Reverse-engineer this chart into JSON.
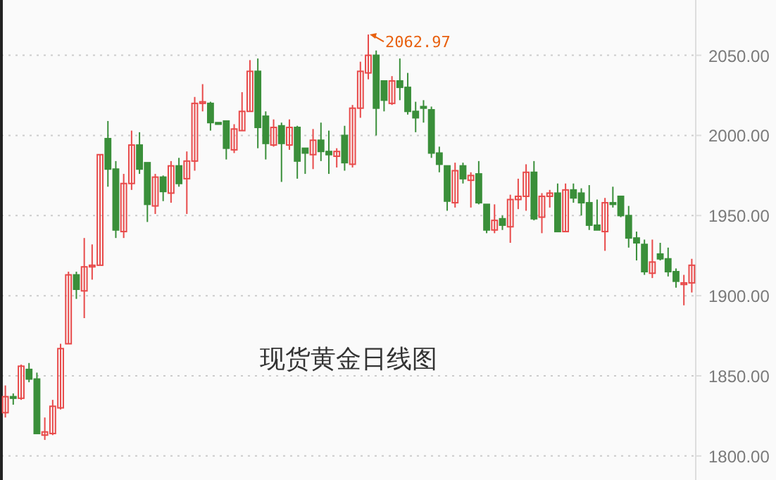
{
  "chart_data": {
    "type": "candlestick",
    "title": "现货黄金日线图",
    "categories": [
      null,
      null,
      null,
      null,
      null,
      null,
      null,
      null,
      null,
      null,
      null,
      null,
      null,
      null,
      null,
      null,
      null,
      null,
      null,
      null,
      null,
      null,
      null,
      null,
      null,
      null,
      null,
      null,
      null,
      null,
      null,
      null,
      null,
      null,
      null,
      null,
      null,
      null,
      null,
      null,
      null,
      null,
      null,
      null,
      null,
      null,
      null,
      null,
      null,
      null,
      null,
      null,
      null,
      null,
      null,
      null,
      null,
      null,
      null,
      null,
      null,
      null,
      null,
      null,
      null,
      null,
      null,
      null,
      null,
      null,
      null,
      null,
      null,
      null,
      null,
      null,
      null,
      null,
      null,
      null,
      null,
      null,
      null,
      null,
      null,
      null,
      null,
      null
    ],
    "ohlc": [
      [
        1827,
        1844,
        1824,
        1837
      ],
      [
        1837,
        1839,
        1832,
        1836
      ],
      [
        1836,
        1857,
        1835,
        1856
      ],
      [
        1854,
        1858,
        1846,
        1848
      ],
      [
        1848,
        1852,
        1814,
        1814
      ],
      [
        1813,
        1824,
        1810,
        1815
      ],
      [
        1814,
        1835,
        1813,
        1831
      ],
      [
        1830,
        1870,
        1829,
        1867
      ],
      [
        1870,
        1915,
        1870,
        1913
      ],
      [
        1913,
        1915,
        1898,
        1904
      ],
      [
        1903,
        1936,
        1886,
        1918
      ],
      [
        1918,
        1932,
        1910,
        1919
      ],
      [
        1919,
        1988,
        1919,
        1988
      ],
      [
        1998,
        2009,
        1968,
        1979
      ],
      [
        1979,
        1984,
        1936,
        1941
      ],
      [
        1940,
        1976,
        1936,
        1970
      ],
      [
        1970,
        2003,
        1966,
        1994
      ],
      [
        1994,
        2002,
        1976,
        1979
      ],
      [
        1983,
        1983,
        1946,
        1957
      ],
      [
        1956,
        1976,
        1951,
        1974
      ],
      [
        1974,
        1975,
        1959,
        1965
      ],
      [
        1964,
        1984,
        1958,
        1981
      ],
      [
        1981,
        1986,
        1968,
        1970
      ],
      [
        1973,
        1990,
        1951,
        1984
      ],
      [
        1984,
        2024,
        1978,
        2020
      ],
      [
        2020,
        2032,
        2015,
        2021
      ],
      [
        2020,
        2021,
        2003,
        2008
      ],
      [
        2008,
        2008,
        2007,
        2007
      ],
      [
        2009,
        2009,
        1985,
        1992
      ],
      [
        1991,
        2007,
        1989,
        2004
      ],
      [
        2003,
        2027,
        2003,
        2015
      ],
      [
        2015,
        2047,
        2015,
        2040
      ],
      [
        2040,
        2048,
        1992,
        2005
      ],
      [
        2012,
        2015,
        1985,
        1995
      ],
      [
        1994,
        2010,
        1993,
        2005
      ],
      [
        2006,
        2008,
        1971,
        1995
      ],
      [
        1994,
        2010,
        1991,
        2005
      ],
      [
        2005,
        2006,
        1973,
        1984
      ],
      [
        1992,
        1992,
        1976,
        1989
      ],
      [
        1988,
        2004,
        1979,
        1997
      ],
      [
        1997,
        2008,
        1984,
        1990
      ],
      [
        1990,
        2003,
        1976,
        1988
      ],
      [
        1987,
        1992,
        1980,
        1990
      ],
      [
        2000,
        2006,
        1978,
        1983
      ],
      [
        1982,
        2019,
        1980,
        2017
      ],
      [
        2017,
        2046,
        2011,
        2040
      ],
      [
        2039,
        2062.97,
        2035,
        2050
      ],
      [
        2050,
        2053,
        2000,
        2017
      ],
      [
        2034,
        2034,
        2015,
        2022
      ],
      [
        2020,
        2037,
        2019,
        2034
      ],
      [
        2034,
        2048,
        2022,
        2030
      ],
      [
        2030,
        2039,
        2013,
        2015
      ],
      [
        2015,
        2021,
        2002,
        2011
      ],
      [
        2018,
        2022,
        2008,
        2017
      ],
      [
        2016,
        2018,
        1986,
        1989
      ],
      [
        1989,
        1993,
        1977,
        1982
      ],
      [
        1981,
        1981,
        1953,
        1959
      ],
      [
        1958,
        1983,
        1955,
        1978
      ],
      [
        1981,
        1983,
        1970,
        1973
      ],
      [
        1972,
        1977,
        1955,
        1975
      ],
      [
        1976,
        1984,
        1957,
        1958
      ],
      [
        1957,
        1957,
        1939,
        1941
      ],
      [
        1941,
        1957,
        1939,
        1947
      ],
      [
        1948,
        1950,
        1941,
        1944
      ],
      [
        1943,
        1963,
        1933,
        1960
      ],
      [
        1960,
        1973,
        1954,
        1962
      ],
      [
        1962,
        1982,
        1953,
        1977
      ],
      [
        1977,
        1984,
        1947,
        1948
      ],
      [
        1949,
        1964,
        1939,
        1962
      ],
      [
        1962,
        1966,
        1955,
        1964
      ],
      [
        1964,
        1970,
        1940,
        1940
      ],
      [
        1940,
        1970,
        1940,
        1966
      ],
      [
        1966,
        1970,
        1958,
        1961
      ],
      [
        1964,
        1967,
        1950,
        1958
      ],
      [
        1958,
        1969,
        1941,
        1944
      ],
      [
        1944,
        1960,
        1941,
        1941
      ],
      [
        1940,
        1961,
        1928,
        1958
      ],
      [
        1958,
        1968,
        1955,
        1957
      ],
      [
        1962,
        1962,
        1949,
        1950
      ],
      [
        1950,
        1956,
        1930,
        1936
      ],
      [
        1936,
        1940,
        1922,
        1933
      ],
      [
        1932,
        1935,
        1913,
        1915
      ],
      [
        1914,
        1935,
        1911,
        1921
      ],
      [
        1926,
        1933,
        1922,
        1923
      ],
      [
        1923,
        1930,
        1912,
        1915
      ],
      [
        1915,
        1917,
        1905,
        1909
      ],
      [
        1907,
        1913,
        1894,
        1908
      ],
      [
        1908,
        1923,
        1902,
        1919
      ]
    ],
    "colors": [
      "#e84a4a",
      "#3a8f3a",
      "#e84a4a",
      "#3a8f3a",
      "#3a8f3a",
      "#e84a4a",
      "#e84a4a",
      "#e84a4a",
      "#e84a4a",
      "#3a8f3a",
      "#e84a4a",
      "#e84a4a",
      "#e84a4a",
      "#3a8f3a",
      "#3a8f3a",
      "#e84a4a",
      "#e84a4a",
      "#3a8f3a",
      "#3a8f3a",
      "#e84a4a",
      "#3a8f3a",
      "#e84a4a",
      "#3a8f3a",
      "#e84a4a",
      "#e84a4a",
      "#e84a4a",
      "#3a8f3a",
      "#3a8f3a",
      "#3a8f3a",
      "#e84a4a",
      "#e84a4a",
      "#e84a4a",
      "#3a8f3a",
      "#3a8f3a",
      "#e84a4a",
      "#3a8f3a",
      "#e84a4a",
      "#3a8f3a",
      "#3a8f3a",
      "#e84a4a",
      "#3a8f3a",
      "#3a8f3a",
      "#e84a4a",
      "#3a8f3a",
      "#e84a4a",
      "#e84a4a",
      "#e84a4a",
      "#3a8f3a",
      "#3a8f3a",
      "#e84a4a",
      "#3a8f3a",
      "#3a8f3a",
      "#3a8f3a",
      "#3a8f3a",
      "#3a8f3a",
      "#3a8f3a",
      "#3a8f3a",
      "#e84a4a",
      "#3a8f3a",
      "#e84a4a",
      "#3a8f3a",
      "#3a8f3a",
      "#e84a4a",
      "#3a8f3a",
      "#e84a4a",
      "#e84a4a",
      "#e84a4a",
      "#3a8f3a",
      "#e84a4a",
      "#e84a4a",
      "#3a8f3a",
      "#e84a4a",
      "#3a8f3a",
      "#3a8f3a",
      "#3a8f3a",
      "#3a8f3a",
      "#e84a4a",
      "#3a8f3a",
      "#3a8f3a",
      "#3a8f3a",
      "#3a8f3a",
      "#3a8f3a",
      "#e84a4a",
      "#3a8f3a",
      "#3a8f3a",
      "#3a8f3a",
      "#e84a4a",
      "#e84a4a"
    ],
    "ylim": [
      1785,
      2084.5
    ],
    "yticks": [
      {
        "value": 1800,
        "label": "1800.00"
      },
      {
        "value": 1850,
        "label": "1850.00"
      },
      {
        "value": 1900,
        "label": "1900.00"
      },
      {
        "value": 1950,
        "label": "1950.00"
      },
      {
        "value": 2000,
        "label": "2000.00"
      },
      {
        "value": 2050,
        "label": "2050.00"
      }
    ],
    "grid": "y",
    "tick_labels": "y",
    "annotations": [
      "2062.97"
    ]
  }
}
